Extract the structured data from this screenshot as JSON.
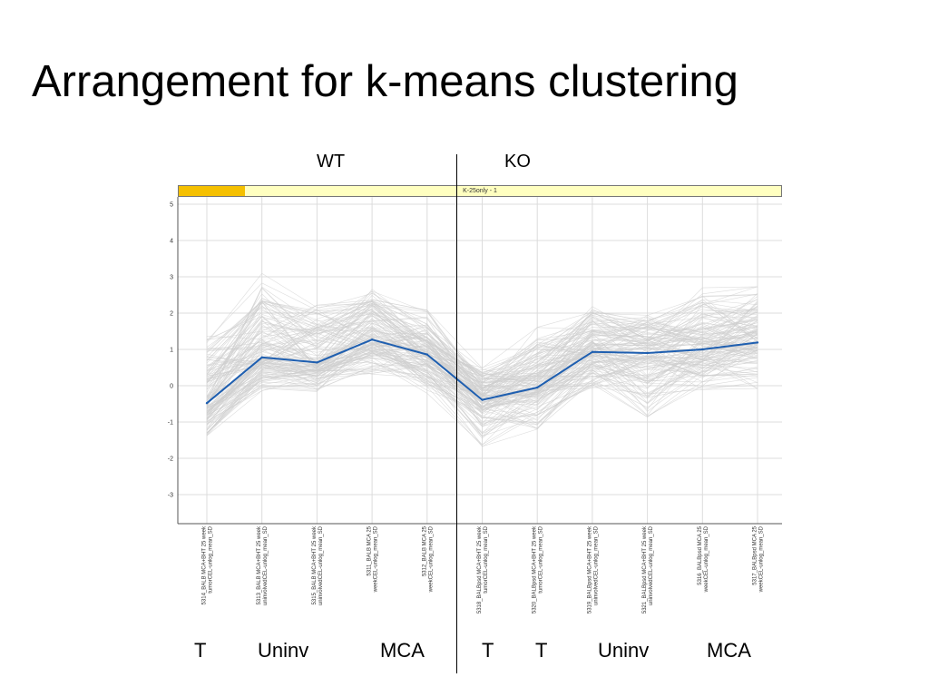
{
  "slide": {
    "title": "Arrangement for k-means clustering",
    "group_labels": [
      "WT",
      "KO"
    ]
  },
  "chart_data": {
    "type": "line",
    "cluster_name": "K-25only - 1",
    "ylim": [
      -3.8,
      5.2
    ],
    "yticks": [
      5,
      4,
      3,
      2,
      1,
      0,
      -1,
      -2,
      -3
    ],
    "grid": true,
    "categories": [
      [
        "5314_BALB MCA+BHT 25 week",
        "tumorCEL-unlog_mean_SD"
      ],
      [
        "5313_BALB MCA+BHT 25 week",
        "uninvolvedCEL-unlog_mean_SD"
      ],
      [
        "5315_BALB MCA+BHT 25 week",
        "uninvolvedCEL-unlog_mean_SD"
      ],
      [
        "5311_BALB MCA 25",
        "weekCEL-unlog_mean_SD"
      ],
      [
        "5312_BALB MCA 25",
        "weekCEL-unlog_mean_SD"
      ],
      [
        "5318_BALBpsd MCA+BHT 25 week",
        "tumorCEL-unlog_mean_SD"
      ],
      [
        "5320_BALBpsd MCA+BHT 25 week",
        "tumorCEL-unlog_mean_SD"
      ],
      [
        "5319_BALBpsd MCA+BHT 25 week",
        "uninvolvedCEL-unlog_mean_SD"
      ],
      [
        "5321_BALBpsd MCA+BHT 25 week",
        "uninvolvedCEL-unlog_mean_SD"
      ],
      [
        "5316_BALBpsd MCA 25",
        "weekCEL-unlog_mean_SD"
      ],
      [
        "5317_BALBpsd MCA 25",
        "weekCEL-unlog_mean_SD"
      ]
    ],
    "mean_profile": [
      -0.48,
      0.78,
      0.64,
      1.27,
      0.86,
      -0.39,
      -0.05,
      0.93,
      0.9,
      1.0,
      1.19
    ],
    "profile_band_low": [
      -1.6,
      -0.3,
      -0.3,
      0.0,
      -0.4,
      -1.9,
      -1.4,
      -0.3,
      -1.5,
      -0.3,
      -0.3
    ],
    "profile_band_high": [
      1.8,
      3.5,
      2.5,
      2.9,
      2.3,
      0.7,
      1.9,
      2.4,
      2.2,
      3.0,
      3.0
    ],
    "line_color": "#1f5fb0",
    "selection_color": "#f5c000",
    "bar_color": "#ffffc0"
  },
  "bottom_labels": [
    "T",
    "Uninv",
    "MCA",
    "T",
    "T",
    "Uninv",
    "MCA"
  ]
}
